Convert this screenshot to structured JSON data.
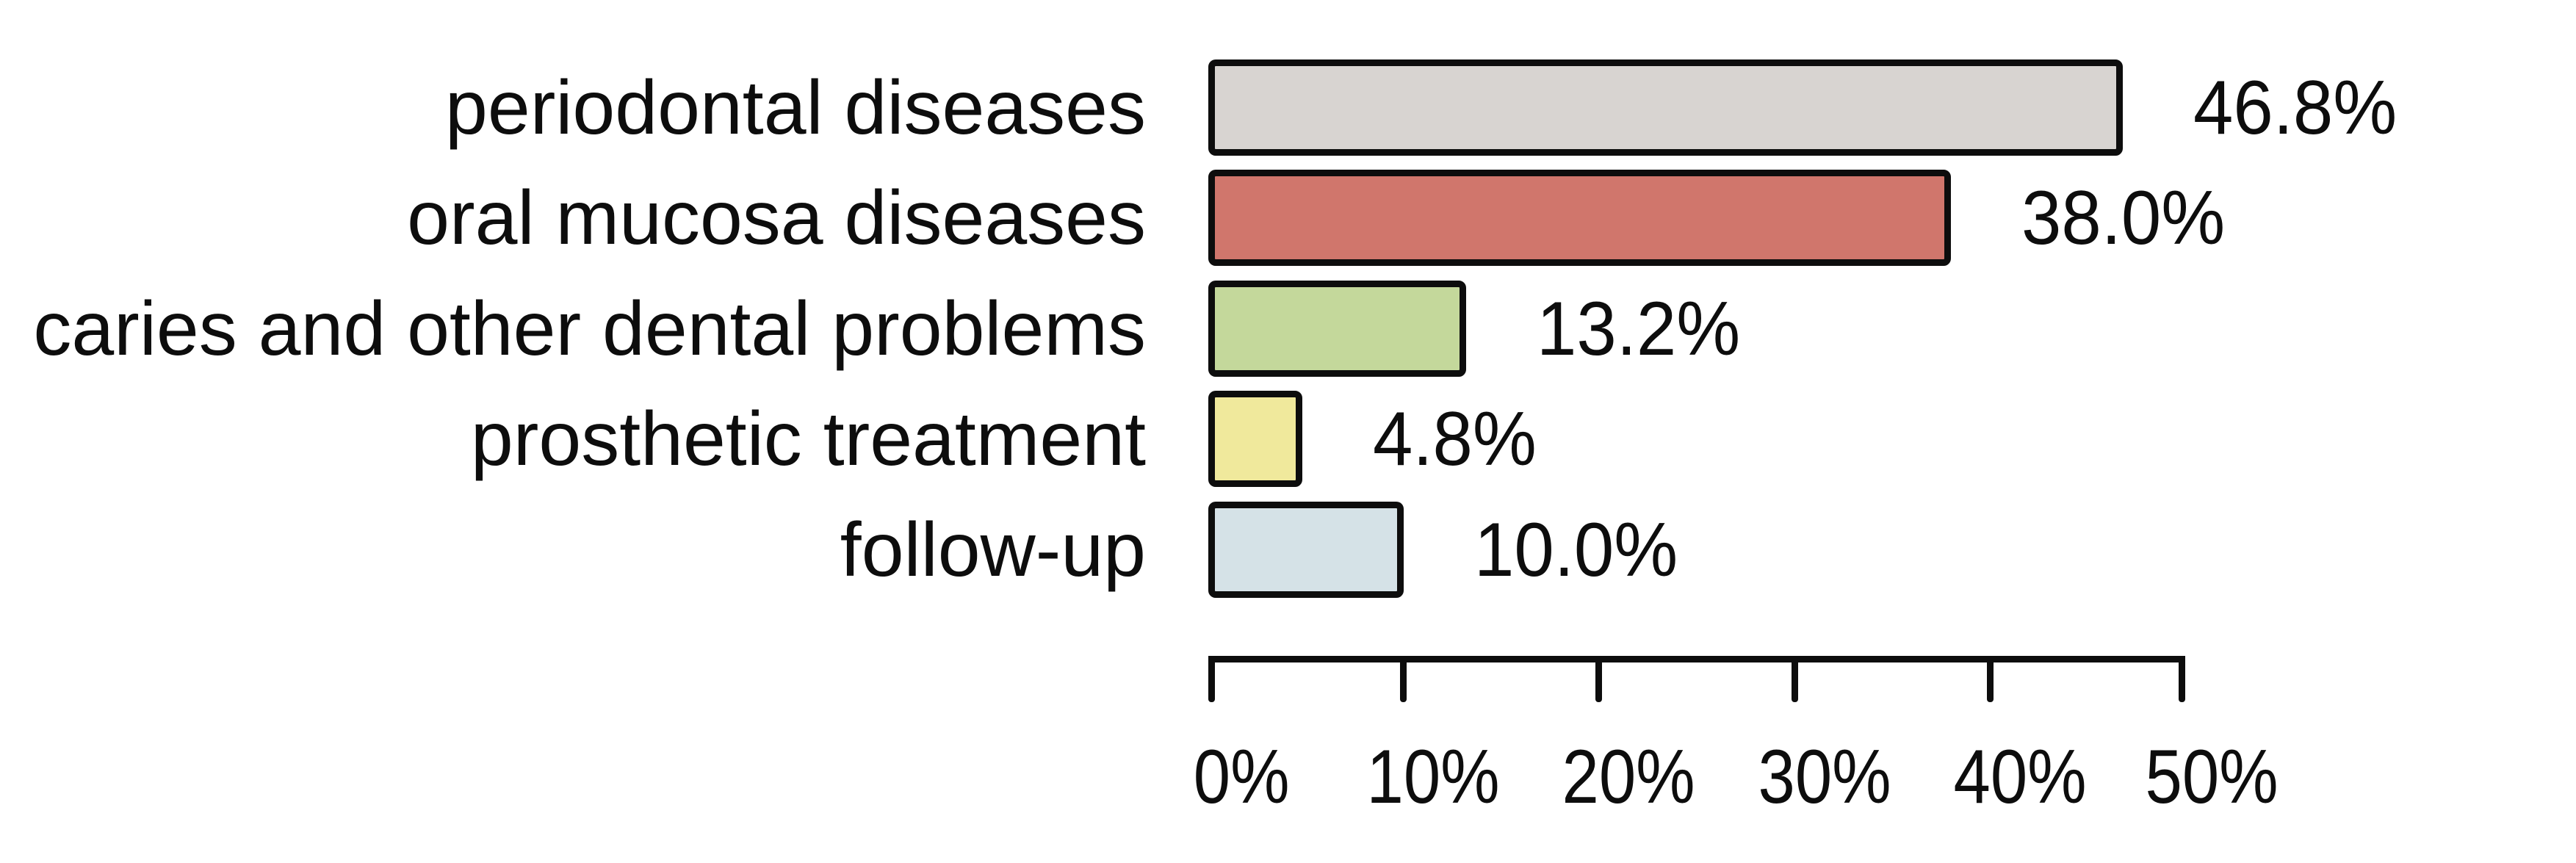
{
  "chart_data": {
    "type": "bar",
    "orientation": "horizontal",
    "title": "",
    "xlabel": "",
    "ylabel": "",
    "xmin": 0,
    "xmax": 50,
    "grid": false,
    "legend": "none",
    "x_tick_labels": [
      "0%",
      "10%",
      "20%",
      "30%",
      "40%",
      "50%"
    ],
    "categories": [
      "periodontal diseases",
      "oral mucosa diseases",
      "caries and other dental problems",
      "prosthetic treatment",
      "follow-up"
    ],
    "values": [
      46.8,
      38.0,
      13.2,
      4.8,
      10.0
    ],
    "bars": [
      {
        "label": "periodontal diseases",
        "value": 46.8,
        "value_label": "46.8%",
        "color": "#d8d4d1"
      },
      {
        "label": "oral mucosa diseases",
        "value": 38.0,
        "value_label": "38.0%",
        "color": "#d0766c"
      },
      {
        "label": "caries and other dental problems",
        "value": 13.2,
        "value_label": "13.2%",
        "color": "#c4d89b"
      },
      {
        "label": "prosthetic treatment",
        "value": 4.8,
        "value_label": "4.8%",
        "color": "#f0e99c"
      },
      {
        "label": "follow-up",
        "value": 10.0,
        "value_label": "10.0%",
        "color": "#d5e2e7"
      }
    ],
    "bar_border_color": "#0d0d0d",
    "axis_color": "#0d0d0d",
    "background": "#ffffff"
  }
}
